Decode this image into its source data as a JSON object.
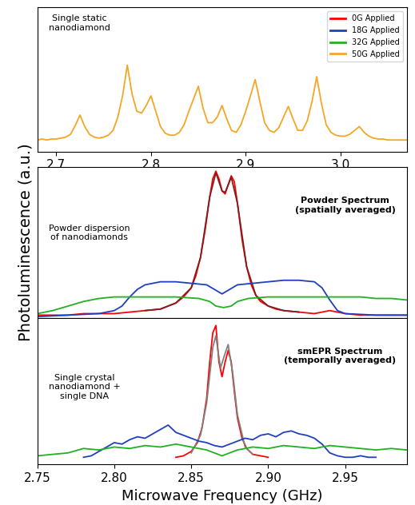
{
  "chart_data": [
    {
      "type": "line",
      "legend": "upper right",
      "tick_labels": "x",
      "xlim": [
        2.68,
        3.07
      ],
      "xticks": [
        2.7,
        2.8,
        2.9,
        3.0
      ],
      "ylim": [
        0,
        1.5
      ],
      "yticks": [],
      "annotations": [
        "Single static\nnanodiamond"
      ],
      "series": [
        {
          "name": "50G Applied",
          "color": "#f5a623",
          "x": [
            2.68,
            2.685,
            2.69,
            2.695,
            2.7,
            2.705,
            2.71,
            2.715,
            2.72,
            2.725,
            2.73,
            2.735,
            2.74,
            2.745,
            2.75,
            2.755,
            2.76,
            2.765,
            2.77,
            2.775,
            2.78,
            2.785,
            2.79,
            2.795,
            2.8,
            2.805,
            2.81,
            2.815,
            2.82,
            2.825,
            2.83,
            2.835,
            2.84,
            2.845,
            2.85,
            2.855,
            2.86,
            2.865,
            2.87,
            2.875,
            2.88,
            2.885,
            2.89,
            2.895,
            2.9,
            2.905,
            2.91,
            2.915,
            2.92,
            2.925,
            2.93,
            2.935,
            2.94,
            2.945,
            2.95,
            2.955,
            2.96,
            2.965,
            2.97,
            2.975,
            2.98,
            2.985,
            2.99,
            2.995,
            3.0,
            3.005,
            3.01,
            3.015,
            3.02,
            3.025,
            3.03,
            3.035,
            3.04,
            3.045,
            3.05,
            3.055,
            3.06,
            3.065,
            3.07
          ],
          "values": [
            0.12,
            0.13,
            0.12,
            0.13,
            0.13,
            0.14,
            0.15,
            0.18,
            0.27,
            0.38,
            0.26,
            0.18,
            0.15,
            0.14,
            0.15,
            0.17,
            0.22,
            0.36,
            0.58,
            0.9,
            0.6,
            0.42,
            0.4,
            0.48,
            0.58,
            0.42,
            0.26,
            0.19,
            0.17,
            0.17,
            0.2,
            0.28,
            0.42,
            0.55,
            0.68,
            0.45,
            0.3,
            0.3,
            0.36,
            0.48,
            0.34,
            0.22,
            0.2,
            0.28,
            0.42,
            0.58,
            0.75,
            0.52,
            0.3,
            0.22,
            0.2,
            0.25,
            0.36,
            0.47,
            0.34,
            0.22,
            0.22,
            0.32,
            0.52,
            0.78,
            0.5,
            0.28,
            0.2,
            0.17,
            0.16,
            0.16,
            0.18,
            0.22,
            0.26,
            0.2,
            0.16,
            0.14,
            0.13,
            0.13,
            0.12,
            0.12,
            0.12,
            0.12,
            0.12
          ]
        }
      ]
    },
    {
      "type": "line",
      "tick_labels": false,
      "y_label": "Photoluminescence (a.u.)",
      "xlim": [
        2.75,
        2.99
      ],
      "xticks": [],
      "ylim": [
        0,
        1
      ],
      "yticks": [],
      "annotations": [
        "Powder dispersion\nof nanodiamonds",
        "Powder Spectrum\n(spatially averaged)"
      ],
      "series": [
        {
          "name": "0G Applied",
          "color": "#ff0000",
          "x": [
            2.75,
            2.76,
            2.77,
            2.78,
            2.79,
            2.8,
            2.81,
            2.82,
            2.83,
            2.84,
            2.845,
            2.85,
            2.853,
            2.856,
            2.859,
            2.862,
            2.864,
            2.866,
            2.868,
            2.87,
            2.872,
            2.874,
            2.876,
            2.878,
            2.88,
            2.883,
            2.886,
            2.889,
            2.892,
            2.895,
            2.9,
            2.905,
            2.91,
            2.92,
            2.93,
            2.935,
            2.94,
            2.945,
            2.95,
            2.96,
            2.97,
            2.98,
            2.99
          ],
          "values": [
            0.02,
            0.02,
            0.02,
            0.03,
            0.03,
            0.03,
            0.04,
            0.05,
            0.06,
            0.1,
            0.14,
            0.2,
            0.28,
            0.4,
            0.58,
            0.8,
            0.92,
            0.97,
            0.92,
            0.84,
            0.82,
            0.88,
            0.94,
            0.9,
            0.76,
            0.52,
            0.34,
            0.22,
            0.15,
            0.11,
            0.08,
            0.06,
            0.05,
            0.04,
            0.03,
            0.04,
            0.05,
            0.04,
            0.03,
            0.02,
            0.02,
            0.02,
            0.02
          ]
        },
        {
          "color": "#7f1f1f",
          "x": [
            2.82,
            2.83,
            2.84,
            2.85,
            2.856,
            2.862,
            2.866,
            2.87,
            2.872,
            2.876,
            2.88,
            2.886,
            2.892,
            2.9,
            2.91,
            2.92
          ],
          "values": [
            0.05,
            0.06,
            0.1,
            0.2,
            0.4,
            0.8,
            0.96,
            0.84,
            0.83,
            0.93,
            0.76,
            0.34,
            0.15,
            0.08,
            0.05,
            0.04
          ]
        },
        {
          "name": "18G Applied",
          "color": "#1f3fbf",
          "x": [
            2.75,
            2.77,
            2.79,
            2.8,
            2.805,
            2.81,
            2.815,
            2.82,
            2.83,
            2.84,
            2.85,
            2.86,
            2.865,
            2.87,
            2.875,
            2.88,
            2.89,
            2.9,
            2.91,
            2.92,
            2.93,
            2.935,
            2.94,
            2.945,
            2.95,
            2.97,
            2.99
          ],
          "values": [
            0.01,
            0.02,
            0.03,
            0.05,
            0.08,
            0.14,
            0.19,
            0.22,
            0.24,
            0.24,
            0.23,
            0.22,
            0.19,
            0.16,
            0.19,
            0.22,
            0.23,
            0.24,
            0.25,
            0.25,
            0.24,
            0.2,
            0.12,
            0.05,
            0.03,
            0.02,
            0.02
          ]
        },
        {
          "name": "32G Applied",
          "color": "#22b022",
          "x": [
            2.75,
            2.76,
            2.77,
            2.78,
            2.79,
            2.8,
            2.82,
            2.84,
            2.855,
            2.862,
            2.866,
            2.871,
            2.876,
            2.88,
            2.887,
            2.9,
            2.92,
            2.94,
            2.96,
            2.97,
            2.98,
            2.99
          ],
          "values": [
            0.03,
            0.05,
            0.08,
            0.11,
            0.13,
            0.14,
            0.14,
            0.14,
            0.13,
            0.11,
            0.08,
            0.07,
            0.08,
            0.11,
            0.13,
            0.14,
            0.14,
            0.14,
            0.14,
            0.13,
            0.13,
            0.12
          ]
        }
      ]
    },
    {
      "type": "line",
      "tick_labels": "x",
      "x_label": "Microwave Frequency (GHz)",
      "xlim": [
        2.75,
        2.99
      ],
      "xticks": [
        2.75,
        {
          "value": 2.8,
          "label": "2.80"
        },
        2.85,
        {
          "value": 2.9,
          "label": "2.90"
        },
        2.95
      ],
      "ylim": [
        0,
        1
      ],
      "yticks": [],
      "annotations": [
        "Single crystal\nnanodiamond +\nsingle DNA",
        "smEPR Spectrum\n(temporally averaged)"
      ],
      "series": [
        {
          "name": "0G Applied",
          "color": "#ff0000",
          "x": [
            2.84,
            2.845,
            2.85,
            2.854,
            2.857,
            2.86,
            2.862,
            2.864,
            2.866,
            2.868,
            2.87,
            2.872,
            2.874,
            2.876,
            2.878,
            2.88,
            2.883,
            2.886,
            2.89,
            2.895,
            2.9
          ],
          "values": [
            0.05,
            0.06,
            0.09,
            0.15,
            0.25,
            0.45,
            0.7,
            0.9,
            0.95,
            0.7,
            0.6,
            0.7,
            0.78,
            0.7,
            0.5,
            0.32,
            0.18,
            0.11,
            0.07,
            0.06,
            0.05
          ]
        },
        {
          "color": "#808080",
          "x": [
            2.85,
            2.856,
            2.86,
            2.864,
            2.866,
            2.869,
            2.872,
            2.874,
            2.877,
            2.88,
            2.885,
            2.89
          ],
          "values": [
            0.08,
            0.2,
            0.42,
            0.8,
            0.88,
            0.66,
            0.76,
            0.82,
            0.62,
            0.34,
            0.12,
            0.07
          ]
        },
        {
          "name": "18G Applied",
          "color": "#1f3fbf",
          "x": [
            2.78,
            2.785,
            2.79,
            2.795,
            2.8,
            2.805,
            2.81,
            2.815,
            2.82,
            2.825,
            2.83,
            2.835,
            2.84,
            2.845,
            2.85,
            2.855,
            2.86,
            2.865,
            2.87,
            2.875,
            2.88,
            2.885,
            2.89,
            2.895,
            2.9,
            2.905,
            2.91,
            2.915,
            2.92,
            2.925,
            2.93,
            2.935,
            2.94,
            2.945,
            2.95,
            2.955,
            2.96,
            2.965,
            2.97
          ],
          "values": [
            0.05,
            0.06,
            0.09,
            0.12,
            0.15,
            0.14,
            0.17,
            0.19,
            0.18,
            0.21,
            0.24,
            0.27,
            0.22,
            0.2,
            0.18,
            0.16,
            0.15,
            0.13,
            0.12,
            0.14,
            0.16,
            0.18,
            0.17,
            0.2,
            0.21,
            0.19,
            0.22,
            0.23,
            0.21,
            0.2,
            0.18,
            0.14,
            0.08,
            0.06,
            0.05,
            0.05,
            0.06,
            0.05,
            0.05
          ]
        },
        {
          "name": "32G Applied",
          "color": "#22b022",
          "x": [
            2.75,
            2.76,
            2.77,
            2.78,
            2.79,
            2.8,
            2.81,
            2.82,
            2.83,
            2.84,
            2.85,
            2.86,
            2.87,
            2.88,
            2.89,
            2.9,
            2.91,
            2.92,
            2.93,
            2.94,
            2.95,
            2.96,
            2.97,
            2.98,
            2.99
          ],
          "values": [
            0.06,
            0.07,
            0.08,
            0.11,
            0.1,
            0.12,
            0.11,
            0.13,
            0.12,
            0.14,
            0.12,
            0.1,
            0.06,
            0.1,
            0.12,
            0.11,
            0.13,
            0.12,
            0.11,
            0.13,
            0.12,
            0.11,
            0.1,
            0.11,
            0.1
          ]
        }
      ]
    }
  ]
}
